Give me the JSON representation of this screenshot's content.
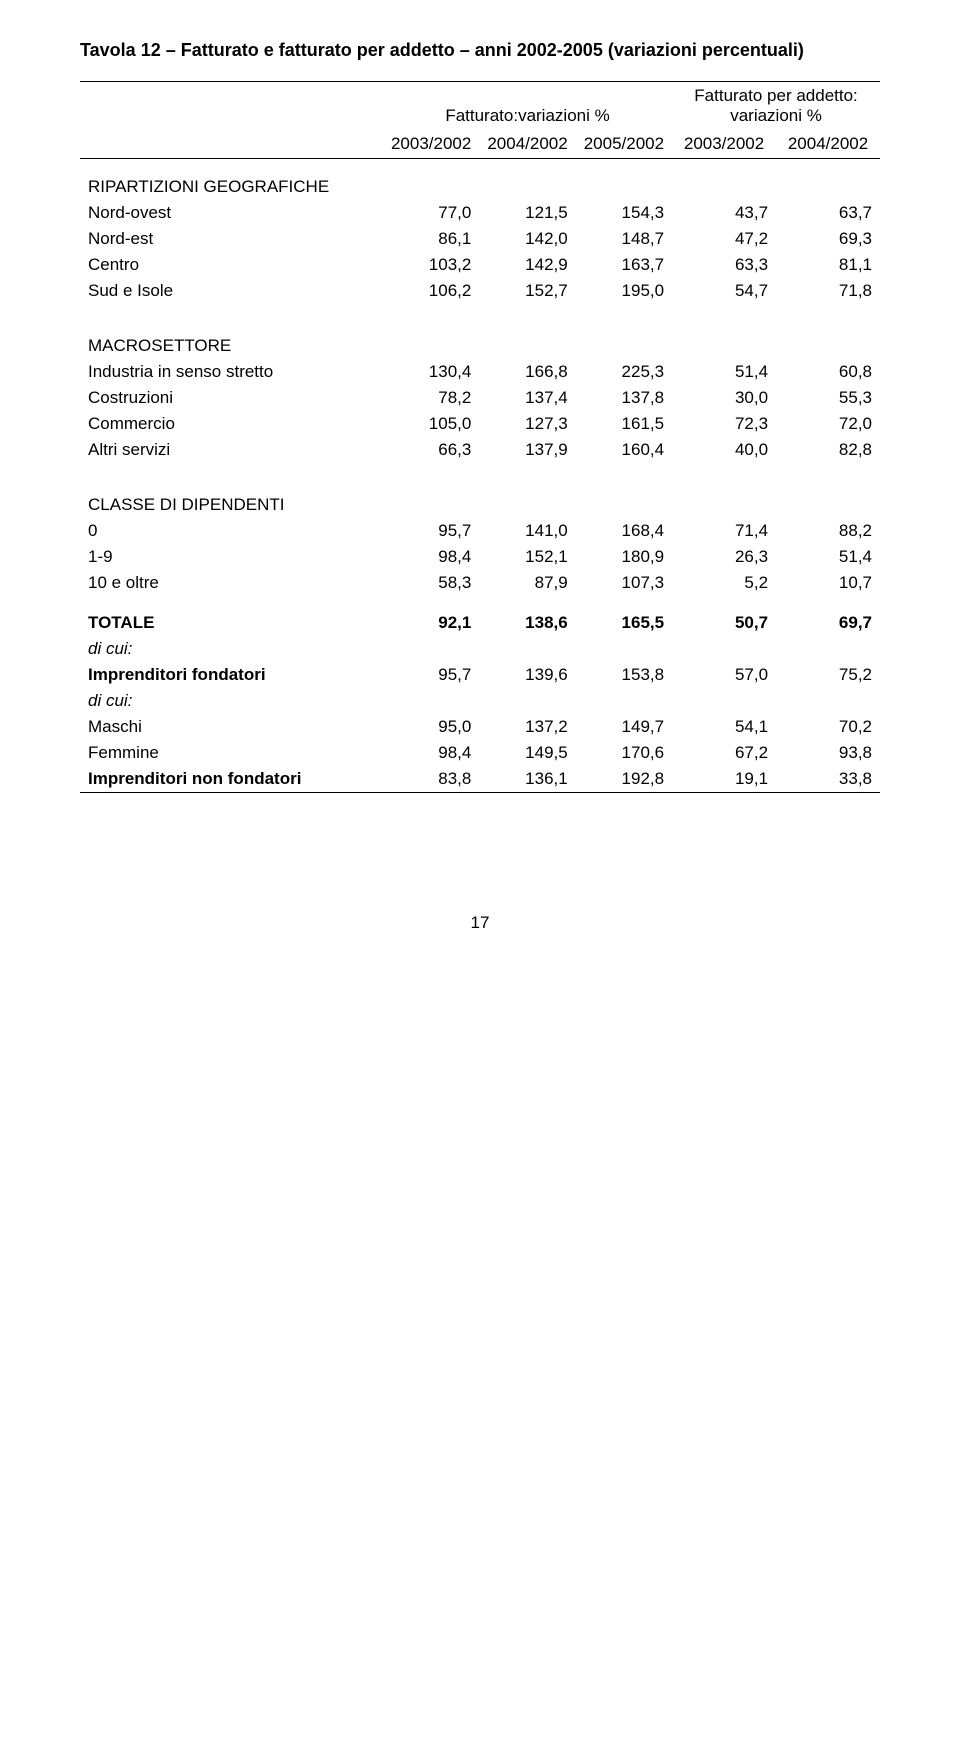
{
  "table": {
    "title": "Tavola 12 – Fatturato e fatturato per addetto – anni 2002-2005 (variazioni percentuali)",
    "header_group1": "Fatturato:variazioni %",
    "header_group2": "Fatturato per addetto: variazioni %",
    "col_headers": [
      "2003/2002",
      "2004/2002",
      "2005/2002",
      "2003/2002",
      "2004/2002"
    ],
    "sections": {
      "geo": {
        "title": "RIPARTIZIONI GEOGRAFICHE",
        "rows": [
          {
            "label": "Nord-ovest",
            "vals": [
              "77,0",
              "121,5",
              "154,3",
              "43,7",
              "63,7"
            ]
          },
          {
            "label": "Nord-est",
            "vals": [
              "86,1",
              "142,0",
              "148,7",
              "47,2",
              "69,3"
            ]
          },
          {
            "label": "Centro",
            "vals": [
              "103,2",
              "142,9",
              "163,7",
              "63,3",
              "81,1"
            ]
          },
          {
            "label": "Sud e Isole",
            "vals": [
              "106,2",
              "152,7",
              "195,0",
              "54,7",
              "71,8"
            ]
          }
        ]
      },
      "macro": {
        "title": "MACROSETTORE",
        "rows": [
          {
            "label": "Industria in senso stretto",
            "vals": [
              "130,4",
              "166,8",
              "225,3",
              "51,4",
              "60,8"
            ]
          },
          {
            "label": "Costruzioni",
            "vals": [
              "78,2",
              "137,4",
              "137,8",
              "30,0",
              "55,3"
            ]
          },
          {
            "label": "Commercio",
            "vals": [
              "105,0",
              "127,3",
              "161,5",
              "72,3",
              "72,0"
            ]
          },
          {
            "label": "Altri servizi",
            "vals": [
              "66,3",
              "137,9",
              "160,4",
              "40,0",
              "82,8"
            ]
          }
        ]
      },
      "classe": {
        "title": "CLASSE DI DIPENDENTI",
        "rows": [
          {
            "label": "0",
            "vals": [
              "95,7",
              "141,0",
              "168,4",
              "71,4",
              "88,2"
            ]
          },
          {
            "label": "1-9",
            "vals": [
              "98,4",
              "152,1",
              "180,9",
              "26,3",
              "51,4"
            ]
          },
          {
            "label": "10 e oltre",
            "vals": [
              "58,3",
              "87,9",
              "107,3",
              "5,2",
              "10,7"
            ]
          }
        ]
      },
      "totale": {
        "rows": [
          {
            "label": "TOTALE",
            "vals": [
              "92,1",
              "138,6",
              "165,5",
              "50,7",
              "69,7"
            ],
            "bold": true
          },
          {
            "label": "di cui:",
            "vals": [
              "",
              "",
              "",
              "",
              ""
            ],
            "italic": true
          },
          {
            "label": "Imprenditori fondatori",
            "vals": [
              "95,7",
              "139,6",
              "153,8",
              "57,0",
              "75,2"
            ],
            "bold": true
          },
          {
            "label": "di cui:",
            "vals": [
              "",
              "",
              "",
              "",
              ""
            ],
            "italic": true
          },
          {
            "label": "Maschi",
            "vals": [
              "95,0",
              "137,2",
              "149,7",
              "54,1",
              "70,2"
            ]
          },
          {
            "label": "Femmine",
            "vals": [
              "98,4",
              "149,5",
              "170,6",
              "67,2",
              "93,8"
            ]
          },
          {
            "label": "Imprenditori non fondatori",
            "vals": [
              "83,8",
              "136,1",
              "192,8",
              "19,1",
              "33,8"
            ],
            "bold": true
          }
        ]
      }
    },
    "page_number": "17"
  }
}
